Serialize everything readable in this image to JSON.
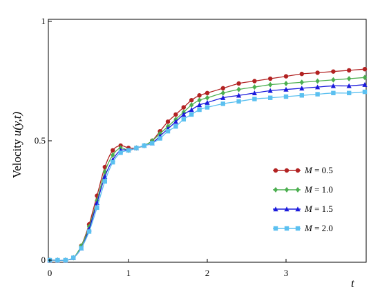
{
  "chart_data": {
    "type": "line",
    "xlabel": "t",
    "ylabel_prefix": "Velocity ",
    "ylabel_var": "u(y,t)",
    "xlim": [
      0,
      4
    ],
    "ylim": [
      0,
      1
    ],
    "xticks": [
      0,
      1,
      2,
      3
    ],
    "yticks": [
      0,
      0.5,
      1
    ],
    "legend_position": "right",
    "series": [
      {
        "name": "M = 0.5",
        "name_var": "M",
        "name_rest": " = 0.5",
        "color": "#b22222",
        "marker": "circle",
        "x": [
          0,
          0.1,
          0.2,
          0.3,
          0.4,
          0.5,
          0.6,
          0.7,
          0.8,
          0.9,
          1.0,
          1.1,
          1.2,
          1.3,
          1.4,
          1.5,
          1.6,
          1.7,
          1.8,
          1.9,
          2.0,
          2.2,
          2.4,
          2.6,
          2.8,
          3.0,
          3.2,
          3.4,
          3.6,
          3.8,
          4.0
        ],
        "y": [
          0,
          0,
          0,
          0.01,
          0.06,
          0.15,
          0.27,
          0.39,
          0.46,
          0.48,
          0.47,
          0.47,
          0.48,
          0.5,
          0.54,
          0.58,
          0.61,
          0.64,
          0.67,
          0.69,
          0.7,
          0.72,
          0.74,
          0.75,
          0.76,
          0.77,
          0.78,
          0.785,
          0.79,
          0.795,
          0.8
        ]
      },
      {
        "name": "M = 1.0",
        "name_var": "M",
        "name_rest": " = 1.0",
        "color": "#4caf50",
        "marker": "diamond",
        "x": [
          0,
          0.1,
          0.2,
          0.3,
          0.4,
          0.5,
          0.6,
          0.7,
          0.8,
          0.9,
          1.0,
          1.1,
          1.2,
          1.3,
          1.4,
          1.5,
          1.6,
          1.7,
          1.8,
          1.9,
          2.0,
          2.2,
          2.4,
          2.6,
          2.8,
          3.0,
          3.2,
          3.4,
          3.6,
          3.8,
          4.0
        ],
        "y": [
          0,
          0,
          0,
          0.01,
          0.06,
          0.14,
          0.25,
          0.37,
          0.44,
          0.47,
          0.46,
          0.47,
          0.48,
          0.5,
          0.53,
          0.56,
          0.59,
          0.62,
          0.65,
          0.67,
          0.68,
          0.7,
          0.715,
          0.725,
          0.735,
          0.74,
          0.745,
          0.75,
          0.755,
          0.76,
          0.765
        ]
      },
      {
        "name": "M = 1.5",
        "name_var": "M",
        "name_rest": " = 1.5",
        "color": "#1a1adc",
        "marker": "triangle",
        "x": [
          0,
          0.1,
          0.2,
          0.3,
          0.4,
          0.5,
          0.6,
          0.7,
          0.8,
          0.9,
          1.0,
          1.1,
          1.2,
          1.3,
          1.4,
          1.5,
          1.6,
          1.7,
          1.8,
          1.9,
          2.0,
          2.2,
          2.4,
          2.6,
          2.8,
          3.0,
          3.2,
          3.4,
          3.6,
          3.8,
          4.0
        ],
        "y": [
          0,
          0,
          0,
          0.01,
          0.05,
          0.13,
          0.24,
          0.35,
          0.42,
          0.46,
          0.46,
          0.47,
          0.48,
          0.49,
          0.52,
          0.55,
          0.58,
          0.61,
          0.63,
          0.65,
          0.66,
          0.68,
          0.69,
          0.7,
          0.71,
          0.715,
          0.72,
          0.725,
          0.73,
          0.73,
          0.735
        ]
      },
      {
        "name": "M = 2.0",
        "name_var": "M",
        "name_rest": " = 2.0",
        "color": "#5bc0f0",
        "marker": "square",
        "x": [
          0,
          0.1,
          0.2,
          0.3,
          0.4,
          0.5,
          0.6,
          0.7,
          0.8,
          0.9,
          1.0,
          1.1,
          1.2,
          1.3,
          1.4,
          1.5,
          1.6,
          1.7,
          1.8,
          1.9,
          2.0,
          2.2,
          2.4,
          2.6,
          2.8,
          3.0,
          3.2,
          3.4,
          3.6,
          3.8,
          4.0
        ],
        "y": [
          0,
          0,
          0,
          0.01,
          0.05,
          0.12,
          0.22,
          0.33,
          0.41,
          0.45,
          0.46,
          0.47,
          0.48,
          0.49,
          0.51,
          0.54,
          0.56,
          0.59,
          0.61,
          0.63,
          0.64,
          0.655,
          0.665,
          0.675,
          0.68,
          0.685,
          0.69,
          0.695,
          0.7,
          0.7,
          0.705
        ]
      }
    ]
  }
}
